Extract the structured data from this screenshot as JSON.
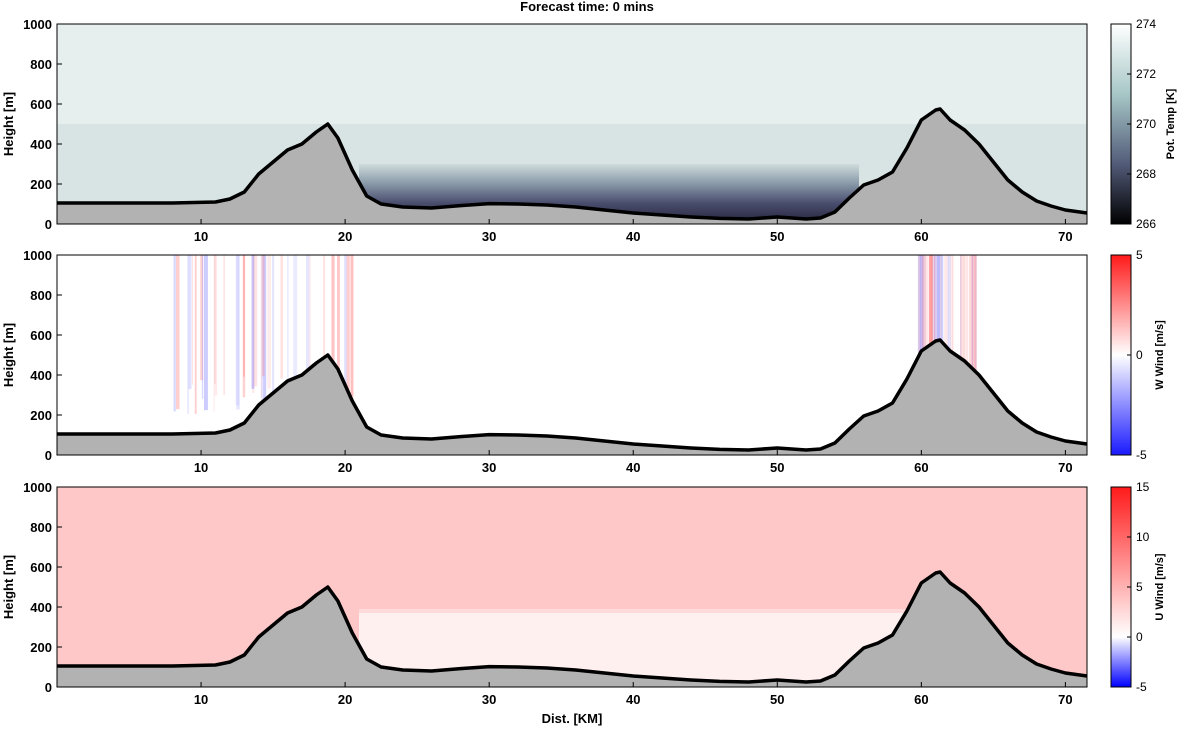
{
  "title": "Forecast time: 0 mins",
  "colors": {
    "terrain": "#b2b2b2",
    "terrain_outline": "#000000",
    "background": "#ffffff"
  },
  "chart_data": [
    {
      "type": "heatmap",
      "panel": "potential-temperature",
      "xlabel": "",
      "ylabel": "Height [m]",
      "xlim": [
        0,
        71.5
      ],
      "ylim": [
        0,
        1000
      ],
      "xticks": [
        "10",
        "20",
        "30",
        "40",
        "50",
        "60",
        "70"
      ],
      "yticks": [
        "0",
        "200",
        "400",
        "600",
        "800",
        "1000"
      ],
      "colorbar": {
        "label": "Pot. Temp [K]",
        "range": [
          266,
          274
        ],
        "ticks": [
          "274",
          "272",
          "270",
          "268",
          "266"
        ],
        "colormap": "bone"
      },
      "fields": [
        {
          "region": "upper layer",
          "height_range": [
            500,
            1000
          ],
          "value": 273.6
        },
        {
          "region": "lower layer",
          "height_range": [
            0,
            500
          ],
          "value": 273.2
        },
        {
          "region": "cold pool",
          "x_range": [
            21,
            56
          ],
          "height_range": [
            0,
            300
          ],
          "value": 268,
          "vertical_gradient": true
        }
      ]
    },
    {
      "type": "heatmap",
      "panel": "vertical-wind",
      "xlabel": "",
      "ylabel": "Height [m]",
      "xlim": [
        0,
        71.5
      ],
      "ylim": [
        0,
        1000
      ],
      "xticks": [
        "10",
        "20",
        "30",
        "40",
        "50",
        "60",
        "70"
      ],
      "yticks": [
        "0",
        "200",
        "400",
        "600",
        "800",
        "1000"
      ],
      "colorbar": {
        "label": "W Wind [m/s]",
        "range": [
          -5,
          5
        ],
        "ticks": [
          "5",
          "0",
          "-5"
        ],
        "colormap": "blue-white-red"
      },
      "fields": [
        {
          "region": "most of domain",
          "value": 0
        },
        {
          "region": "streaks west ridge",
          "x_range": [
            8,
            20.5
          ],
          "value_range": [
            -0.5,
            0.5
          ]
        },
        {
          "region": "streaks east ridge",
          "x_range": [
            59.5,
            64
          ],
          "value_range": [
            -0.5,
            0.5
          ]
        }
      ]
    },
    {
      "type": "heatmap",
      "panel": "horizontal-wind",
      "xlabel": "Dist. [KM]",
      "ylabel": "Height [m]",
      "xlim": [
        0,
        71.5
      ],
      "ylim": [
        0,
        1000
      ],
      "xticks": [
        "10",
        "20",
        "30",
        "40",
        "50",
        "60",
        "70"
      ],
      "yticks": [
        "0",
        "200",
        "400",
        "600",
        "800",
        "1000"
      ],
      "colorbar": {
        "label": "U Wind [m/s]",
        "range": [
          -5,
          15
        ],
        "ticks": [
          "15",
          "10",
          "5",
          "0",
          "-5"
        ],
        "colormap": "blue-white-red"
      },
      "fields": [
        {
          "region": "background flow",
          "value": 3
        },
        {
          "region": "cold pool (weak flow)",
          "x_range": [
            21,
            59.5
          ],
          "height_range": [
            0,
            380
          ],
          "value": 0.5
        }
      ]
    }
  ],
  "terrain_profile": {
    "x_km": [
      0,
      8,
      11,
      12,
      13,
      14,
      15,
      16,
      17,
      18,
      18.8,
      19.5,
      20.5,
      21.5,
      22.5,
      24,
      26,
      28,
      30,
      32,
      34,
      36,
      38,
      40,
      42,
      44,
      46,
      48,
      50,
      52,
      53,
      54,
      55,
      56,
      57,
      58,
      59,
      60,
      61,
      61.3,
      62,
      63,
      64,
      65,
      66,
      67,
      68,
      69,
      70,
      71.5
    ],
    "height_m": [
      105,
      105,
      110,
      125,
      160,
      250,
      310,
      370,
      400,
      460,
      500,
      430,
      270,
      140,
      100,
      85,
      80,
      92,
      102,
      100,
      95,
      85,
      70,
      55,
      45,
      35,
      28,
      25,
      35,
      25,
      30,
      60,
      130,
      195,
      220,
      260,
      380,
      520,
      570,
      575,
      520,
      470,
      400,
      310,
      220,
      160,
      115,
      90,
      70,
      55
    ]
  }
}
